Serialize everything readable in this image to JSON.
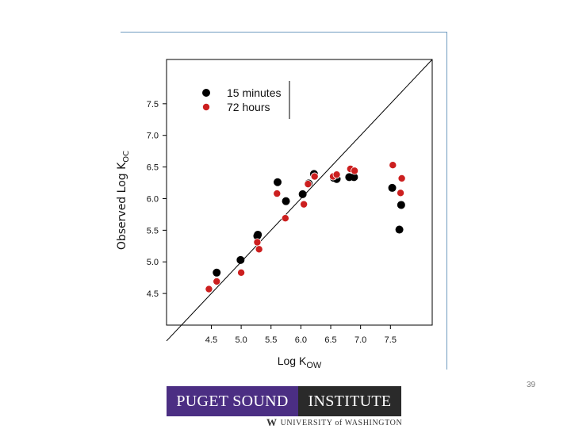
{
  "chart_data": {
    "type": "scatter",
    "xlabel": "Log K",
    "xlabel_sub": "OW",
    "ylabel": "Observed Log K",
    "ylabel_sub": "OC",
    "xlim": [
      3.75,
      8.2
    ],
    "ylim": [
      4.0,
      8.2
    ],
    "xticks": [
      4.5,
      5.0,
      5.5,
      6.0,
      6.5,
      7.0,
      7.5
    ],
    "yticks": [
      4.5,
      5.0,
      5.5,
      6.0,
      6.5,
      7.0,
      7.5
    ],
    "xtick_labels": [
      "4.5",
      "5.0",
      "5.5",
      "6.0",
      "6.5",
      "7.0",
      "7.5"
    ],
    "ytick_labels": [
      "4.5",
      "5.0",
      "5.5",
      "6.0",
      "6.5",
      "7.0",
      "7.5"
    ],
    "reference_line": {
      "type": "1:1",
      "from": [
        3.75,
        3.75
      ],
      "to": [
        8.2,
        8.2
      ]
    },
    "legend_position": "top-left",
    "series": [
      {
        "name": "15 minutes",
        "color": "#000000",
        "points": [
          [
            4.59,
            4.83
          ],
          [
            4.99,
            5.03
          ],
          [
            5.28,
            5.43
          ],
          [
            5.27,
            5.41
          ],
          [
            5.61,
            6.26
          ],
          [
            5.75,
            5.96
          ],
          [
            6.03,
            6.07
          ],
          [
            6.13,
            6.24
          ],
          [
            6.22,
            6.39
          ],
          [
            6.55,
            6.33
          ],
          [
            6.6,
            6.31
          ],
          [
            6.81,
            6.34
          ],
          [
            6.89,
            6.34
          ],
          [
            7.53,
            6.17
          ],
          [
            7.65,
            5.51
          ],
          [
            7.68,
            5.9
          ]
        ]
      },
      {
        "name": "72 hours",
        "color": "#cc1f1f",
        "points": [
          [
            4.46,
            4.57
          ],
          [
            4.59,
            4.69
          ],
          [
            5.0,
            4.83
          ],
          [
            5.27,
            5.31
          ],
          [
            5.3,
            5.2
          ],
          [
            5.6,
            6.08
          ],
          [
            5.74,
            5.69
          ],
          [
            6.05,
            5.91
          ],
          [
            6.12,
            6.23
          ],
          [
            6.23,
            6.35
          ],
          [
            6.54,
            6.35
          ],
          [
            6.6,
            6.38
          ],
          [
            6.83,
            6.47
          ],
          [
            6.9,
            6.44
          ],
          [
            7.54,
            6.53
          ],
          [
            7.67,
            6.09
          ],
          [
            7.69,
            6.32
          ]
        ]
      }
    ]
  },
  "logo": {
    "left_text": "PUGET SOUND",
    "right_text": "INSTITUTE",
    "uw_mark": "W",
    "uw_text": "UNIVERSITY of WASHINGTON"
  },
  "page_number": "39"
}
